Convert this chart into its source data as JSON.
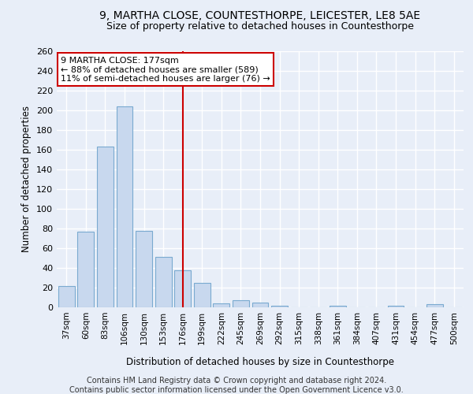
{
  "title": "9, MARTHA CLOSE, COUNTESTHORPE, LEICESTER, LE8 5AE",
  "subtitle": "Size of property relative to detached houses in Countesthorpe",
  "xlabel": "Distribution of detached houses by size in Countesthorpe",
  "ylabel": "Number of detached properties",
  "categories": [
    "37sqm",
    "60sqm",
    "83sqm",
    "106sqm",
    "130sqm",
    "153sqm",
    "176sqm",
    "199sqm",
    "222sqm",
    "245sqm",
    "269sqm",
    "292sqm",
    "315sqm",
    "338sqm",
    "361sqm",
    "384sqm",
    "407sqm",
    "431sqm",
    "454sqm",
    "477sqm",
    "500sqm"
  ],
  "values": [
    22,
    77,
    163,
    204,
    78,
    51,
    38,
    25,
    4,
    7,
    5,
    2,
    0,
    0,
    2,
    0,
    0,
    2,
    0,
    3,
    0
  ],
  "bar_color": "#c8d8ee",
  "bar_edge_color": "#7aaad0",
  "vline_index": 6,
  "vline_color": "#cc0000",
  "annotation_line1": "9 MARTHA CLOSE: 177sqm",
  "annotation_line2": "← 88% of detached houses are smaller (589)",
  "annotation_line3": "11% of semi-detached houses are larger (76) →",
  "annotation_box_color": "#ffffff",
  "annotation_box_edge": "#cc0000",
  "ylim": [
    0,
    260
  ],
  "yticks": [
    0,
    20,
    40,
    60,
    80,
    100,
    120,
    140,
    160,
    180,
    200,
    220,
    240,
    260
  ],
  "footer_line1": "Contains HM Land Registry data © Crown copyright and database right 2024.",
  "footer_line2": "Contains public sector information licensed under the Open Government Licence v3.0.",
  "background_color": "#e8eef8",
  "grid_color": "#ffffff"
}
